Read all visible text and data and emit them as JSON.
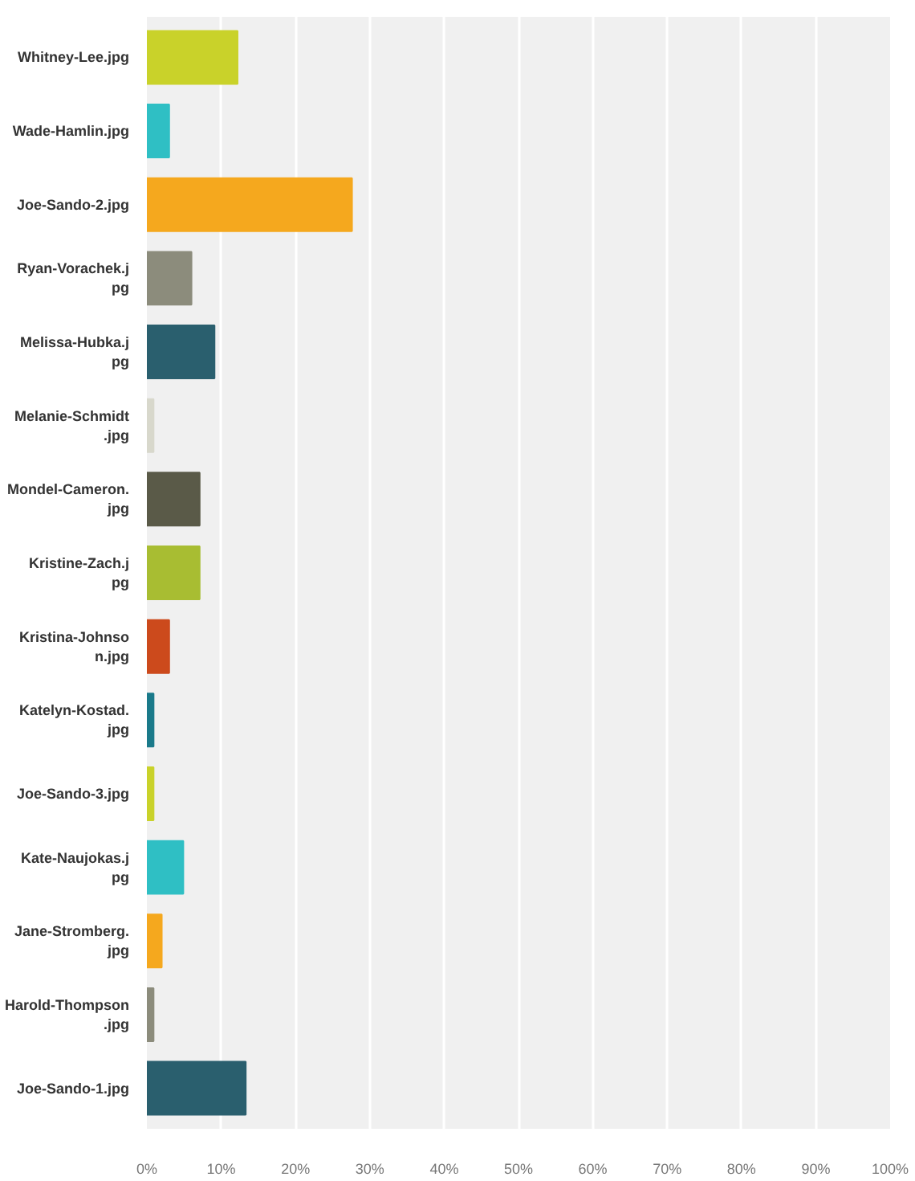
{
  "chart_data": {
    "type": "bar",
    "orientation": "horizontal",
    "categories": [
      "Whitney-Lee.jpg",
      "Wade-Hamlin.jpg",
      "Joe-Sando-2.jpg",
      "Ryan-Vorachek.jpg",
      "Melissa-Hubka.jpg",
      "Melanie-Schmidt.jpg",
      "Mondel-Cameron.jpg",
      "Kristine-Zach.jpg",
      "Kristina-Johnson.jpg",
      "Katelyn-Kostad.jpg",
      "Joe-Sando-3.jpg",
      "Kate-Naujokas.jpg",
      "Jane-Stromberg.jpg",
      "Harold-Thompson.jpg",
      "Joe-Sando-1.jpg"
    ],
    "values": [
      12.2,
      3.0,
      27.6,
      6.0,
      9.1,
      0.9,
      7.1,
      7.1,
      3.0,
      0.9,
      0.9,
      4.9,
      2.0,
      0.9,
      13.3
    ],
    "colors": [
      "#c9d22a",
      "#2fbfc4",
      "#f5a81e",
      "#8c8c7c",
      "#2a5f6e",
      "#d8d8cc",
      "#5a5a48",
      "#a8bd32",
      "#cc4a1c",
      "#1a7a8a",
      "#c9d22a",
      "#2fbfc4",
      "#f5a81e",
      "#8c8c7c",
      "#2a5f6e"
    ],
    "xlim": [
      0,
      100
    ],
    "xticks": [
      {
        "value": 0,
        "label": "0%"
      },
      {
        "value": 10,
        "label": "10%"
      },
      {
        "value": 20,
        "label": "20%"
      },
      {
        "value": 30,
        "label": "30%"
      },
      {
        "value": 40,
        "label": "40%"
      },
      {
        "value": 50,
        "label": "50%"
      },
      {
        "value": 60,
        "label": "60%"
      },
      {
        "value": 70,
        "label": "70%"
      },
      {
        "value": 80,
        "label": "80%"
      },
      {
        "value": 90,
        "label": "90%"
      },
      {
        "value": 100,
        "label": "100%"
      }
    ],
    "grid": "x"
  }
}
